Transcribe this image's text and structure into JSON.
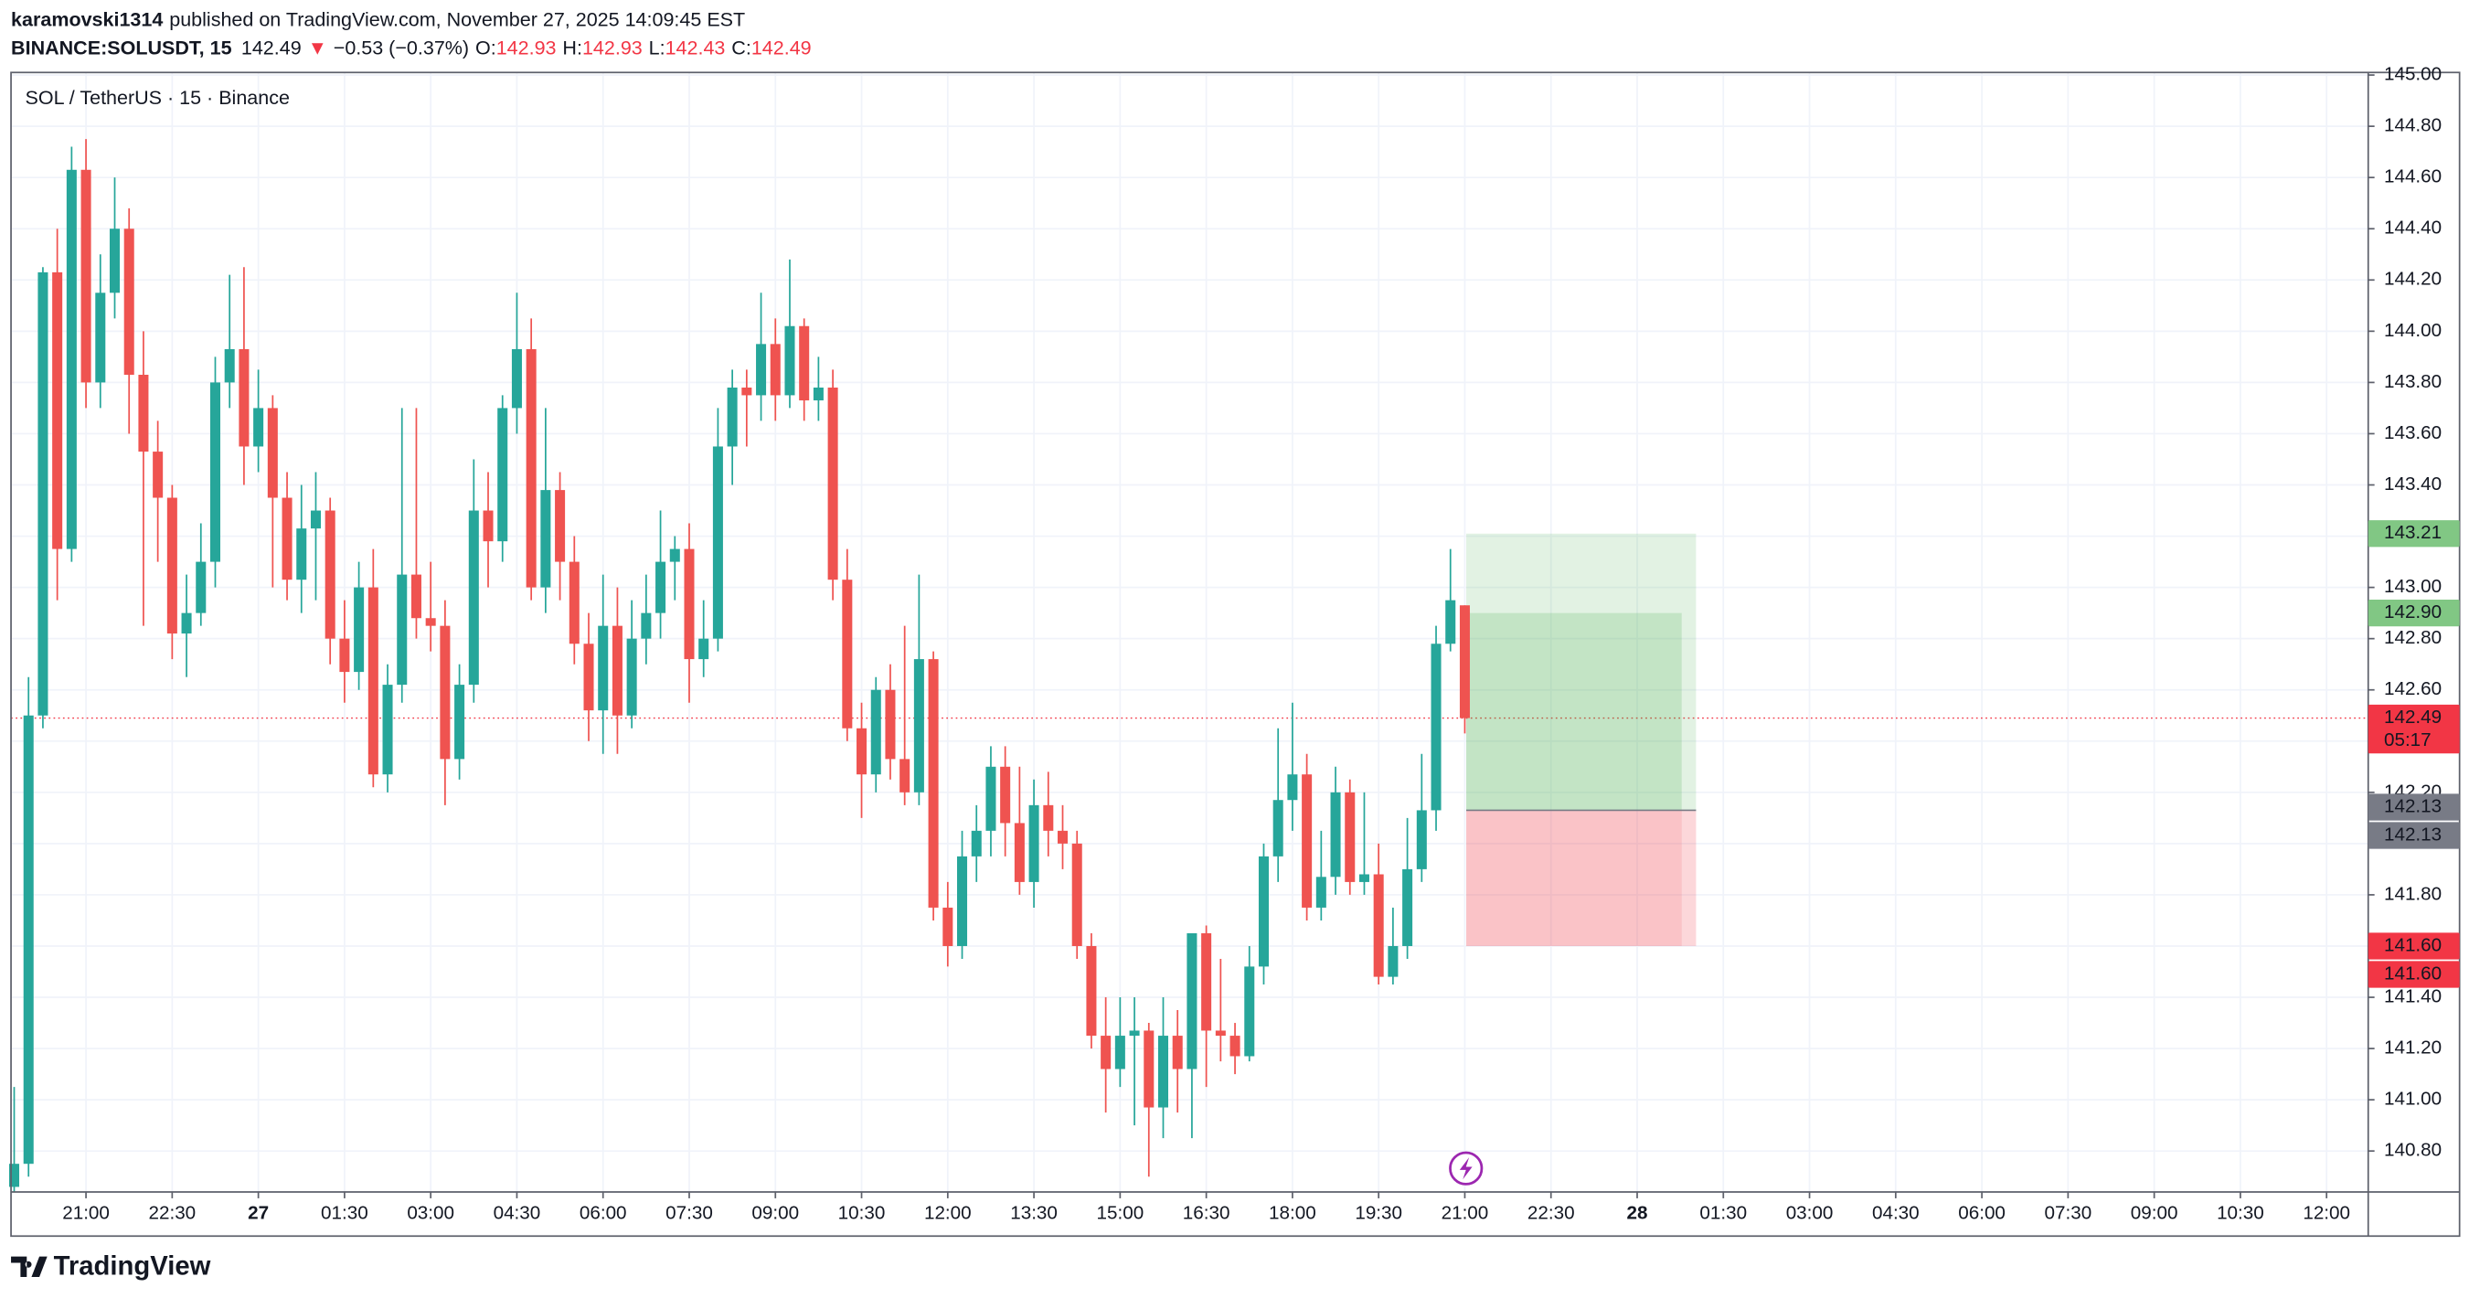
{
  "chart_data": {
    "type": "candlestick",
    "publisher": "karamovski1314",
    "published": "published on TradingView.com, November 27, 2025 14:09:45 EST",
    "symbol": "BINANCE:SOLUSDT, 15",
    "last": 142.49,
    "change": "−0.53 (−0.37%)",
    "ohlc_labels": [
      "O:",
      "H:",
      "L:",
      "C:"
    ],
    "title": "SOL / TetherUS · 15 · Binance",
    "brand": "TradingView",
    "up_color": "#26a69a",
    "down_color": "#ef5350",
    "grid": true,
    "open": [
      140.66,
      140.75,
      142.5,
      144.23,
      143.15,
      144.63,
      143.8,
      144.15,
      144.4,
      143.83,
      143.53,
      143.35,
      142.82,
      142.9,
      143.1,
      143.8,
      143.93,
      143.55,
      143.7,
      143.35,
      143.03,
      143.23,
      143.3,
      142.8,
      142.67,
      143.0,
      142.27,
      142.62,
      143.05,
      142.88,
      142.85,
      142.33,
      142.62,
      143.3,
      143.18,
      143.7,
      143.93,
      143.0,
      143.38,
      143.1,
      142.78,
      142.52,
      142.85,
      142.5,
      142.8,
      142.9,
      143.1,
      143.15,
      142.72,
      142.8,
      143.55,
      143.78,
      143.75,
      143.95,
      143.75,
      144.02,
      143.73,
      143.78,
      143.03,
      142.45,
      142.27,
      142.6,
      142.33,
      142.2,
      142.72,
      141.75,
      141.6,
      141.95,
      142.05,
      142.3,
      142.08,
      141.85,
      142.15,
      142.05,
      142.0,
      141.6,
      141.25,
      141.12,
      141.25,
      141.27,
      140.97,
      141.25,
      141.12,
      141.65,
      141.27,
      141.25,
      141.17,
      141.52,
      141.95,
      142.17,
      142.27,
      141.75,
      141.87,
      142.2,
      141.85,
      141.88,
      141.48,
      141.6,
      141.9,
      142.13,
      142.78,
      142.93
    ],
    "high": [
      141.05,
      142.65,
      144.25,
      144.4,
      144.72,
      144.75,
      144.3,
      144.6,
      144.48,
      144.0,
      143.65,
      143.4,
      143.05,
      143.25,
      143.9,
      144.22,
      144.25,
      143.85,
      143.75,
      143.45,
      143.4,
      143.45,
      143.35,
      142.95,
      143.1,
      143.15,
      142.7,
      143.7,
      143.7,
      143.1,
      142.95,
      142.7,
      143.5,
      143.45,
      143.75,
      144.15,
      144.05,
      143.7,
      143.45,
      143.2,
      142.9,
      143.05,
      143.0,
      142.95,
      143.05,
      143.3,
      143.2,
      143.25,
      142.95,
      143.7,
      143.85,
      143.85,
      144.15,
      144.05,
      144.28,
      144.05,
      143.9,
      143.85,
      143.15,
      142.55,
      142.65,
      142.7,
      142.85,
      143.05,
      142.75,
      141.85,
      142.05,
      142.15,
      142.38,
      142.38,
      142.3,
      142.25,
      142.28,
      142.15,
      142.05,
      141.65,
      141.4,
      141.4,
      141.4,
      141.3,
      141.4,
      141.35,
      141.65,
      141.68,
      141.55,
      141.3,
      141.6,
      142.0,
      142.45,
      142.55,
      142.35,
      142.05,
      142.3,
      142.25,
      142.2,
      142.0,
      141.75,
      142.1,
      142.35,
      142.85,
      143.15,
      142.93
    ],
    "low": [
      140.64,
      140.7,
      142.45,
      142.95,
      143.1,
      143.7,
      143.7,
      144.05,
      143.6,
      142.85,
      143.1,
      142.72,
      142.65,
      142.85,
      143.0,
      143.7,
      143.4,
      143.45,
      143.0,
      142.95,
      142.9,
      142.95,
      142.7,
      142.55,
      142.6,
      142.22,
      142.2,
      142.55,
      142.8,
      142.75,
      142.15,
      142.25,
      142.55,
      143.0,
      143.1,
      143.6,
      142.95,
      142.9,
      142.95,
      142.7,
      142.4,
      142.35,
      142.35,
      142.45,
      142.7,
      142.8,
      142.95,
      142.55,
      142.65,
      142.75,
      143.4,
      143.55,
      143.65,
      143.65,
      143.7,
      143.65,
      143.65,
      142.95,
      142.4,
      142.1,
      142.2,
      142.25,
      142.15,
      142.15,
      141.7,
      141.52,
      141.55,
      141.85,
      141.95,
      141.95,
      141.8,
      141.75,
      141.95,
      141.9,
      141.55,
      141.2,
      140.95,
      141.05,
      140.9,
      140.7,
      140.85,
      140.95,
      140.85,
      141.05,
      141.15,
      141.1,
      141.15,
      141.45,
      141.85,
      142.05,
      141.7,
      141.7,
      141.8,
      141.8,
      141.8,
      141.45,
      141.45,
      141.55,
      141.85,
      142.05,
      142.75,
      142.43
    ],
    "close": [
      140.75,
      142.5,
      144.23,
      143.15,
      144.63,
      143.8,
      144.15,
      144.4,
      143.83,
      143.53,
      143.35,
      142.82,
      142.9,
      143.1,
      143.8,
      143.93,
      143.55,
      143.7,
      143.35,
      143.03,
      143.23,
      143.3,
      142.8,
      142.67,
      143.0,
      142.27,
      142.62,
      143.05,
      142.88,
      142.85,
      142.33,
      142.62,
      143.3,
      143.18,
      143.7,
      143.93,
      143.0,
      143.38,
      143.1,
      142.78,
      142.52,
      142.85,
      142.5,
      142.8,
      142.9,
      143.1,
      143.15,
      142.72,
      142.8,
      143.55,
      143.78,
      143.75,
      143.95,
      143.75,
      144.02,
      143.73,
      143.78,
      143.03,
      142.45,
      142.27,
      142.6,
      142.33,
      142.2,
      142.72,
      141.75,
      141.6,
      141.95,
      142.05,
      142.3,
      142.08,
      141.85,
      142.15,
      142.05,
      142.0,
      141.6,
      141.25,
      141.12,
      141.25,
      141.27,
      140.97,
      141.25,
      141.12,
      141.65,
      141.27,
      141.25,
      141.17,
      141.52,
      141.95,
      142.17,
      142.27,
      141.75,
      141.87,
      142.2,
      141.85,
      141.88,
      141.48,
      141.6,
      141.9,
      142.13,
      142.78,
      142.95,
      142.49
    ],
    "xlim": [
      -0.22,
      163.9
    ],
    "xticks": [
      {
        "value": 5,
        "label": "21:00"
      },
      {
        "value": 11,
        "label": "22:30"
      },
      {
        "value": 17,
        "label": "27"
      },
      {
        "value": 23,
        "label": "01:30"
      },
      {
        "value": 29,
        "label": "03:00"
      },
      {
        "value": 35,
        "label": "04:30"
      },
      {
        "value": 41,
        "label": "06:00"
      },
      {
        "value": 47,
        "label": "07:30"
      },
      {
        "value": 53,
        "label": "09:00"
      },
      {
        "value": 59,
        "label": "10:30"
      },
      {
        "value": 65,
        "label": "12:00"
      },
      {
        "value": 71,
        "label": "13:30"
      },
      {
        "value": 77,
        "label": "15:00"
      },
      {
        "value": 83,
        "label": "16:30"
      },
      {
        "value": 89,
        "label": "18:00"
      },
      {
        "value": 95,
        "label": "19:30"
      },
      {
        "value": 101,
        "label": "21:00"
      },
      {
        "value": 107,
        "label": "22:30"
      },
      {
        "value": 113,
        "label": "28"
      },
      {
        "value": 119,
        "label": "01:30"
      },
      {
        "value": 125,
        "label": "03:00"
      },
      {
        "value": 131,
        "label": "04:30"
      },
      {
        "value": 137,
        "label": "06:00"
      },
      {
        "value": 143,
        "label": "07:30"
      },
      {
        "value": 149,
        "label": "09:00"
      },
      {
        "value": 155,
        "label": "10:30"
      },
      {
        "value": 161,
        "label": "12:00"
      }
    ],
    "ylim": [
      140.64,
      145.01
    ],
    "yticks": [
      {
        "value": 140.8,
        "label": "140.80"
      },
      {
        "value": 141.0,
        "label": "141.00"
      },
      {
        "value": 141.2,
        "label": "141.20"
      },
      {
        "value": 141.4,
        "label": "141.40"
      },
      {
        "value": 141.6,
        "label": "141.60"
      },
      {
        "value": 141.8,
        "label": "141.80"
      },
      {
        "value": 142.0,
        "label": "142.00"
      },
      {
        "value": 142.2,
        "label": "142.20"
      },
      {
        "value": 142.4,
        "label": "142.40"
      },
      {
        "value": 142.6,
        "label": "142.60"
      },
      {
        "value": 142.8,
        "label": "142.80"
      },
      {
        "value": 143.0,
        "label": "143.00"
      },
      {
        "value": 143.2,
        "label": "143.20"
      },
      {
        "value": 143.4,
        "label": "143.40"
      },
      {
        "value": 143.6,
        "label": "143.60"
      },
      {
        "value": 143.8,
        "label": "143.80"
      },
      {
        "value": 144.0,
        "label": "144.00"
      },
      {
        "value": 144.2,
        "label": "144.20"
      },
      {
        "value": 144.4,
        "label": "144.40"
      },
      {
        "value": 144.6,
        "label": "144.60"
      },
      {
        "value": 144.8,
        "label": "144.80"
      },
      {
        "value": 145.0,
        "label": "145.00"
      }
    ],
    "position": {
      "target": {
        "value": 143.21,
        "label": "143.21"
      },
      "reached": {
        "value": 142.9,
        "label": "142.90"
      },
      "entry": 142.13,
      "stop": {
        "value": 141.6,
        "label": "141.60"
      }
    },
    "countdown": "05:17"
  }
}
